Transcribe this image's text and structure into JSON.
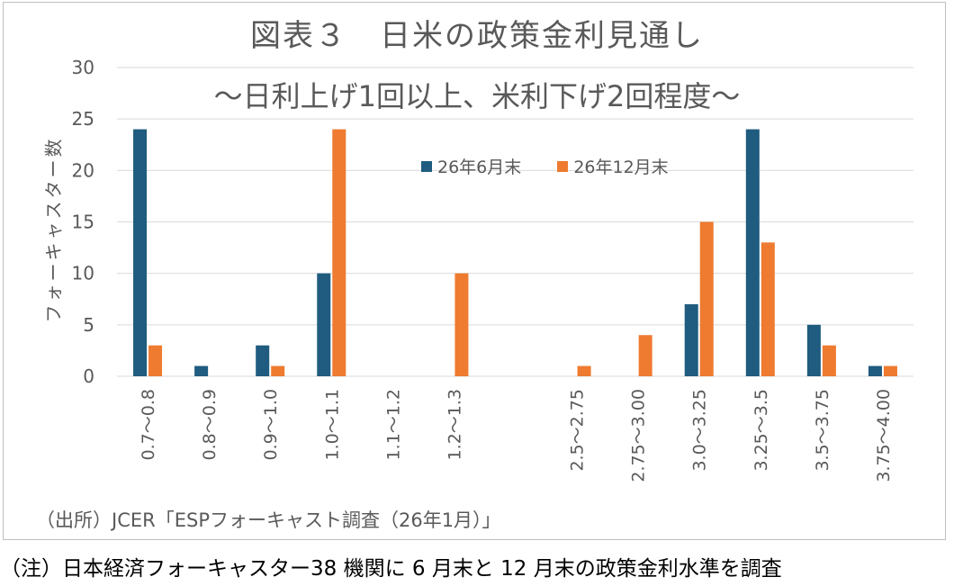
{
  "chart_data": {
    "type": "bar",
    "title": "図表３　日米の政策金利見通し",
    "subtitle": "～日利上げ1回以上、米利下げ2回程度～",
    "ylabel": "フォーキャスター数",
    "xlabel": "",
    "ylim": [
      0,
      30
    ],
    "yticks": [
      "0",
      "5",
      "10",
      "15",
      "20",
      "25",
      "30"
    ],
    "grid": true,
    "legend_position": "top-center",
    "categories": [
      "0.7～0.8",
      "0.8～0.9",
      "0.9～1.0",
      "1.0～1.1",
      "1.1～1.2",
      "1.2～1.3",
      "",
      "2.5～2.75",
      "2.75～3.00",
      "3.0～3.25",
      "3.25～3.5",
      "3.5～3.75",
      "3.75～4.00"
    ],
    "series": [
      {
        "name": "26年6月末",
        "color": "#1f5c7f",
        "values": [
          24,
          1,
          3,
          10,
          0,
          0,
          null,
          0,
          0,
          7,
          24,
          5,
          1
        ]
      },
      {
        "name": "26年12月末",
        "color": "#ee7b30",
        "values": [
          3,
          0,
          1,
          24,
          0,
          10,
          null,
          1,
          4,
          15,
          13,
          3,
          1
        ]
      }
    ]
  },
  "source": "（出所）JCER「ESPフォーキャスト調査（26年1月）」",
  "note": "（注）日本経済フォーキャスター38 機関に 6 月末と 12 月末の政策金利水準を調査"
}
